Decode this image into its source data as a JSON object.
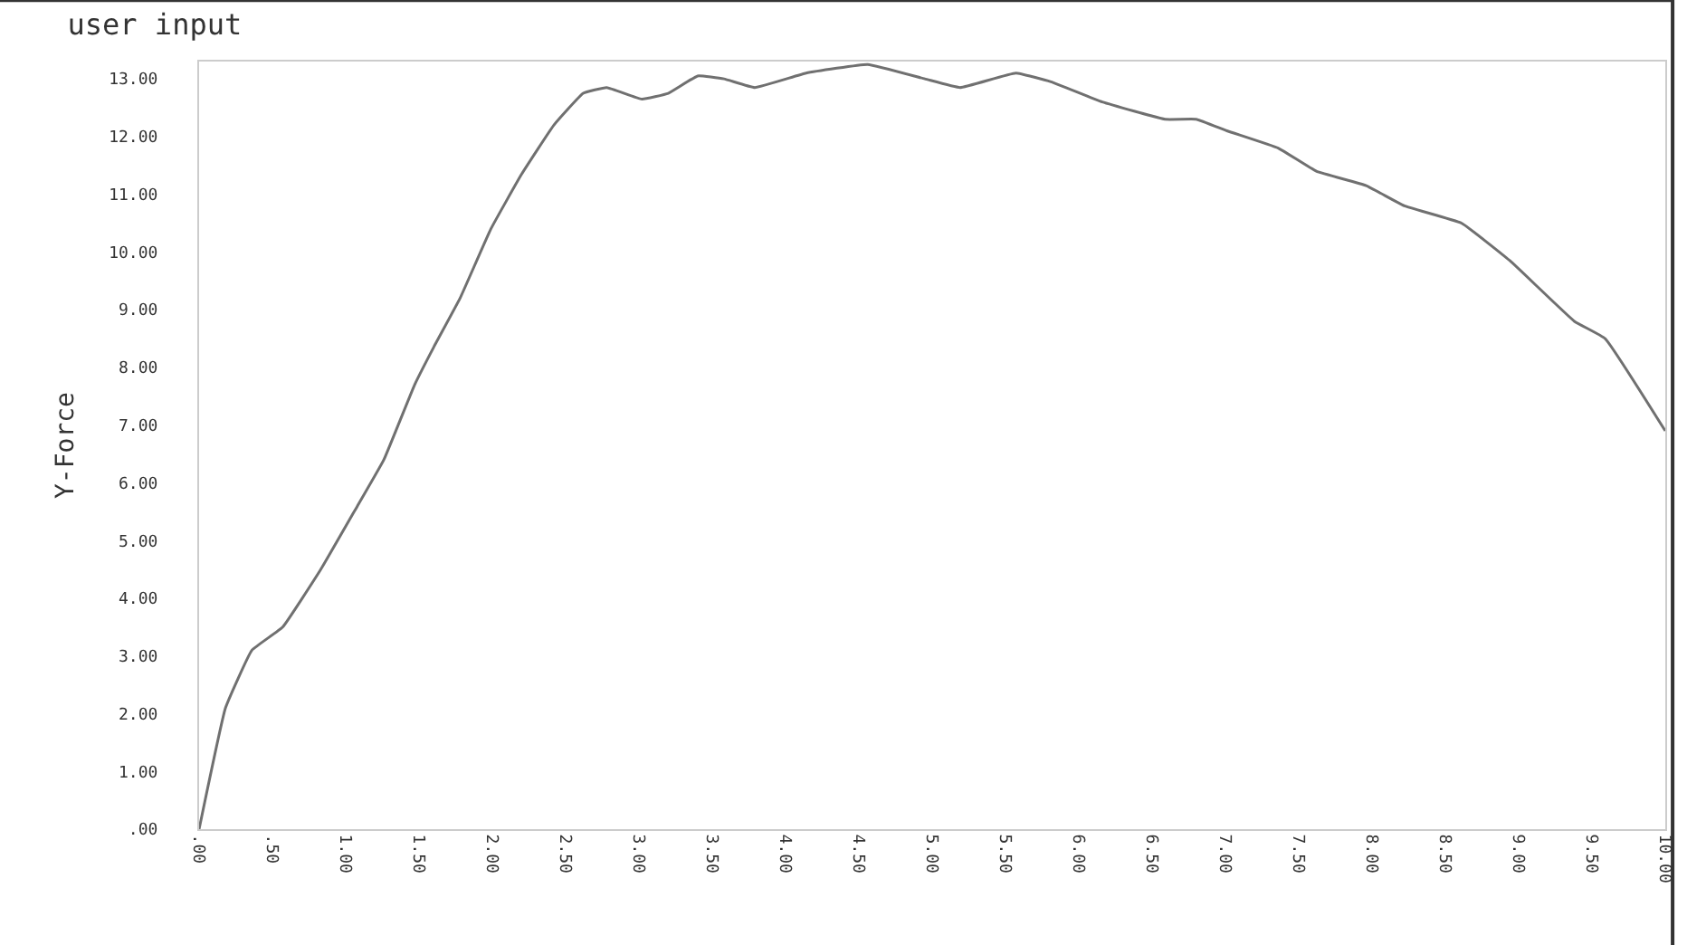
{
  "chart_data": {
    "type": "line",
    "title": "user input",
    "ylabel": "Y-Force",
    "x": [
      0,
      0.18,
      0.36,
      0.57,
      0.83,
      1.08,
      1.26,
      1.47,
      1.6,
      1.78,
      1.99,
      2.2,
      2.42,
      2.62,
      2.78,
      3.02,
      3.2,
      3.4,
      3.58,
      3.79,
      4.14,
      4.56,
      4.95,
      5.19,
      5.57,
      5.81,
      6.16,
      6.59,
      6.8,
      7.01,
      7.36,
      7.62,
      7.96,
      8.22,
      8.61,
      8.94,
      9.38,
      9.59,
      10
    ],
    "series": [
      {
        "color": "#707070",
        "values": [
          0,
          2.1,
          3.1,
          3.5,
          4.5,
          5.6,
          6.4,
          7.7,
          8.35,
          9.2,
          10.4,
          11.35,
          12.2,
          12.75,
          12.85,
          12.65,
          12.75,
          13.05,
          13.0,
          12.85,
          13.1,
          13.25,
          13.0,
          12.85,
          13.1,
          12.95,
          12.6,
          12.3,
          12.3,
          12.1,
          11.8,
          11.4,
          11.15,
          10.8,
          10.5,
          9.85,
          8.8,
          8.5,
          6.9
        ]
      }
    ],
    "xlim": [
      0,
      10
    ],
    "ylim": [
      0,
      13.3
    ],
    "xticks": [
      {
        "value": 0,
        "label": ".00"
      },
      {
        "value": 0.5,
        "label": ".50"
      },
      {
        "value": 1,
        "label": "1.00"
      },
      {
        "value": 1.5,
        "label": "1.50"
      },
      {
        "value": 2,
        "label": "2.00"
      },
      {
        "value": 2.5,
        "label": "2.50"
      },
      {
        "value": 3,
        "label": "3.00"
      },
      {
        "value": 3.5,
        "label": "3.50"
      },
      {
        "value": 4,
        "label": "4.00"
      },
      {
        "value": 4.5,
        "label": "4.50"
      },
      {
        "value": 5,
        "label": "5.00"
      },
      {
        "value": 5.5,
        "label": "5.50"
      },
      {
        "value": 6,
        "label": "6.00"
      },
      {
        "value": 6.5,
        "label": "6.50"
      },
      {
        "value": 7,
        "label": "7.00"
      },
      {
        "value": 7.5,
        "label": "7.50"
      },
      {
        "value": 8,
        "label": "8.00"
      },
      {
        "value": 8.5,
        "label": "8.50"
      },
      {
        "value": 9,
        "label": "9.00"
      },
      {
        "value": 9.5,
        "label": "9.50"
      },
      {
        "value": 10,
        "label": "10.00"
      }
    ],
    "yticks": [
      {
        "value": 0,
        "label": ".00"
      },
      {
        "value": 1,
        "label": "1.00"
      },
      {
        "value": 2,
        "label": "2.00"
      },
      {
        "value": 3,
        "label": "3.00"
      },
      {
        "value": 4,
        "label": "4.00"
      },
      {
        "value": 5,
        "label": "5.00"
      },
      {
        "value": 6,
        "label": "6.00"
      },
      {
        "value": 7,
        "label": "7.00"
      },
      {
        "value": 8,
        "label": "8.00"
      },
      {
        "value": 9,
        "label": "9.00"
      },
      {
        "value": 10,
        "label": "10.00"
      },
      {
        "value": 11,
        "label": "11.00"
      },
      {
        "value": 12,
        "label": "12.00"
      },
      {
        "value": 13,
        "label": "13.00"
      }
    ],
    "line_style": "solid"
  }
}
